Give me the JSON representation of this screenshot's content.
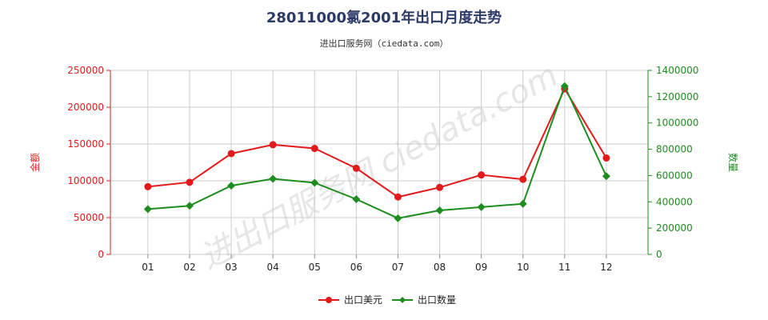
{
  "title": "28011000氯2001年出口月度走势",
  "subtitle": "进出口服务网（ciedata.com）",
  "watermark": "进出口服务网 ciedata.com",
  "chart_data": {
    "type": "line",
    "categories": [
      "01",
      "02",
      "03",
      "04",
      "05",
      "06",
      "07",
      "08",
      "09",
      "10",
      "11",
      "12"
    ],
    "y_left": {
      "label": "金额",
      "ticks": [
        "0",
        "50000",
        "100000",
        "150000",
        "200000",
        "250000"
      ],
      "range": [
        0,
        250000
      ],
      "color": "#e31a1c"
    },
    "y_right": {
      "label": "数量",
      "ticks": [
        "0",
        "200000",
        "400000",
        "600000",
        "800000",
        "1000000",
        "1200000",
        "1400000"
      ],
      "range": [
        0,
        1400000
      ],
      "color": "#1f8c1f"
    },
    "series": [
      {
        "name": "出口美元",
        "axis": "left",
        "color": "#e31a1c",
        "marker": "circle",
        "values": [
          92000,
          98000,
          137000,
          149000,
          144000,
          117000,
          78000,
          91000,
          108000,
          102000,
          225000,
          131000
        ]
      },
      {
        "name": "出口数量",
        "axis": "right",
        "color": "#1f8c1f",
        "marker": "diamond",
        "values": [
          345000,
          370000,
          523000,
          575000,
          545000,
          420000,
          275000,
          335000,
          360000,
          385000,
          1280000,
          595000
        ]
      }
    ],
    "grid": true,
    "legend_position": "bottom"
  }
}
